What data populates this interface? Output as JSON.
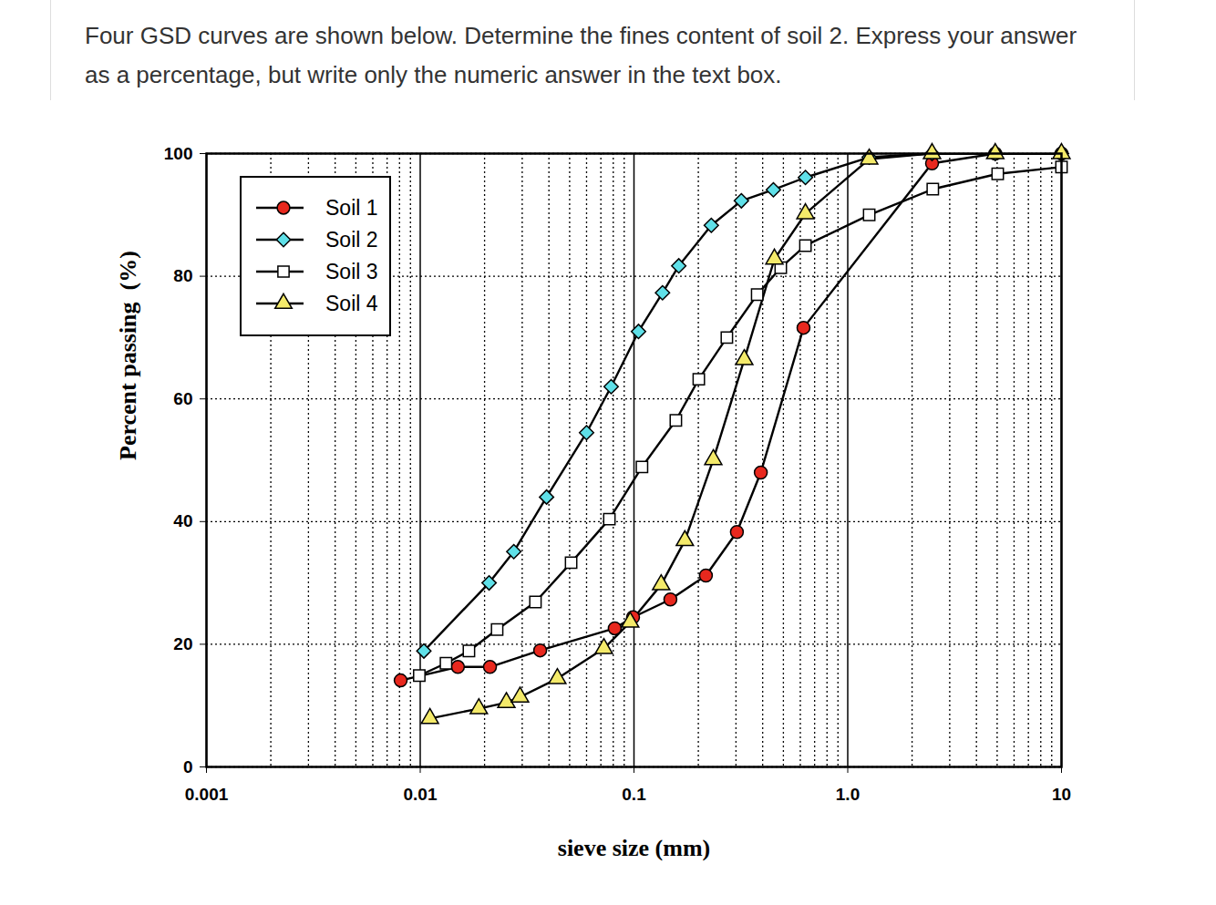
{
  "chart_data": {
    "type": "line",
    "title": "Four GSD curves are shown below. Determine the fines content of soil 2. Express your answer as a percentage, but write only the numeric answer in the text box.",
    "x_label": "sieve size (mm)",
    "y_label": "Percent passing  (%)",
    "log": "x",
    "grid": true,
    "legend": "top-left",
    "xlim": [
      0.001,
      10
    ],
    "xticks": [
      0.001,
      0.01,
      0.1,
      {
        "value": 1,
        "label": "1.0"
      },
      10
    ],
    "ylim": [
      0,
      100
    ],
    "yticks": [
      0,
      20,
      40,
      60,
      80,
      100
    ],
    "series": [
      {
        "name": "Soil 1",
        "color": "#e8281e",
        "marker": "circle",
        "x": [
          0.0081,
          0.015,
          0.0212,
          0.0364,
          0.0813,
          0.099,
          0.148,
          0.217,
          0.303,
          0.392,
          0.621,
          2.48,
          4.9,
          10
        ],
        "values": [
          14.1,
          16.3,
          16.3,
          19.0,
          22.6,
          24.4,
          27.3,
          31.2,
          38.3,
          48.0,
          71.6,
          98.4,
          100,
          100
        ]
      },
      {
        "name": "Soil 2",
        "color": "#5fe0e8",
        "marker": "diamond",
        "x": [
          0.0104,
          0.021,
          0.0274,
          0.039,
          0.06,
          0.0782,
          0.105,
          0.136,
          0.162,
          0.23,
          0.318,
          0.449,
          0.634,
          1.26,
          2.48,
          4.9,
          10
        ],
        "values": [
          18.9,
          30.0,
          35.1,
          44.0,
          54.5,
          62.0,
          71.0,
          77.3,
          81.7,
          88.3,
          92.3,
          94.1,
          96.1,
          99.4,
          100,
          100,
          100
        ]
      },
      {
        "name": "Soil 3",
        "color": "#ffffff",
        "marker": "square",
        "x": [
          0.0099,
          0.0132,
          0.0169,
          0.0229,
          0.0346,
          0.0508,
          0.0767,
          0.109,
          0.157,
          0.201,
          0.272,
          0.377,
          0.486,
          0.634,
          1.26,
          2.5,
          5.03,
          10
        ],
        "values": [
          14.9,
          16.9,
          18.9,
          22.4,
          26.9,
          33.3,
          40.4,
          48.9,
          56.5,
          63.2,
          70.0,
          77.0,
          81.4,
          85.0,
          90.0,
          94.2,
          96.7,
          97.8
        ]
      },
      {
        "name": "Soil 4",
        "color": "#f4ea6a",
        "marker": "triangle",
        "x": [
          0.0111,
          0.0188,
          0.0253,
          0.0293,
          0.0438,
          0.0723,
          0.096,
          0.134,
          0.173,
          0.235,
          0.328,
          0.454,
          0.634,
          1.26,
          2.48,
          4.9,
          10
        ],
        "values": [
          7.9,
          9.5,
          10.5,
          11.4,
          14.4,
          19.3,
          23.6,
          29.7,
          36.9,
          50.1,
          66.4,
          82.8,
          90.2,
          99.1,
          100,
          100,
          100
        ]
      }
    ]
  }
}
